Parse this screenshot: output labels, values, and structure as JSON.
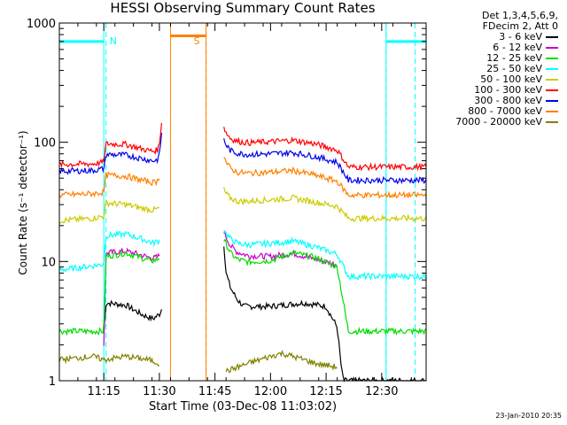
{
  "chart_data": {
    "type": "line",
    "title": "HESSI Observing Summary Count Rates",
    "xlabel": "Start Time (03-Dec-08 11:03:02)",
    "ylabel": "Count Rate (s⁻¹ detector⁻¹)",
    "y_scale": "log",
    "ylim": [
      1,
      1000
    ],
    "xlim": [
      11.05,
      12.7
    ],
    "x_tick_labels": [
      "11:15",
      "11:30",
      "11:45",
      "12:00",
      "12:15",
      "12:30"
    ],
    "x_tick_values": [
      11.25,
      11.5,
      11.75,
      12.0,
      12.25,
      12.5
    ],
    "y_tick_labels": [
      "1",
      "10",
      "100",
      "1000"
    ],
    "y_tick_values": [
      1,
      10,
      100,
      1000
    ],
    "data_gap": [
      11.55,
      11.79
    ],
    "series": [
      {
        "name": "3 - 6 keV",
        "color": "#000000",
        "segments": [
          {
            "x": [
              11.25,
              11.26,
              11.35,
              11.42,
              11.47,
              11.49,
              11.5,
              11.51
            ],
            "y": [
              2.5,
              4.5,
              4.3,
              3.6,
              3.3,
              3.5,
              3.6,
              4.0
            ]
          },
          {
            "x": [
              11.79,
              11.8,
              11.82,
              11.85,
              11.88,
              12.0,
              12.15,
              12.25,
              12.3,
              12.32,
              12.33,
              12.7
            ],
            "y": [
              14,
              8,
              6,
              4.8,
              4.2,
              4.2,
              4.5,
              4.2,
              2.8,
              1.2,
              1.0,
              1.0
            ]
          }
        ]
      },
      {
        "name": "6 - 12 keV",
        "color": "#cc00cc",
        "segments": [
          {
            "x": [
              11.25,
              11.26,
              11.35,
              11.42,
              11.47,
              11.49,
              11.5
            ],
            "y": [
              2.0,
              11.8,
              12.2,
              11.3,
              10.6,
              10.9,
              11.2
            ]
          },
          {
            "x": [
              11.79,
              11.8,
              11.82,
              11.85,
              11.9,
              12.0,
              12.1,
              12.2,
              12.3
            ],
            "y": [
              18,
              16,
              13.5,
              12.0,
              11.2,
              11.0,
              11.7,
              10.5,
              9.4
            ]
          }
        ]
      },
      {
        "name": "12 - 25 keV",
        "color": "#00dd00",
        "segments": [
          {
            "x": [
              11.05,
              11.2,
              11.25,
              11.26,
              11.35,
              11.42,
              11.47,
              11.49,
              11.5
            ],
            "y": [
              2.6,
              2.6,
              2.6,
              11.0,
              11.8,
              10.7,
              10.1,
              10.4,
              10.8
            ]
          },
          {
            "x": [
              11.79,
              11.8,
              11.82,
              11.85,
              11.9,
              12.0,
              12.1,
              12.2,
              12.3,
              12.35,
              12.7
            ],
            "y": [
              15,
              14,
              11.8,
              10.4,
              9.9,
              10.2,
              11.8,
              10.8,
              9.0,
              2.6,
              2.6
            ]
          }
        ]
      },
      {
        "name": "25 - 50 keV",
        "color": "#00ffff",
        "segments": [
          {
            "x": [
              11.05,
              11.1,
              11.2,
              11.25,
              11.26,
              11.35,
              11.42,
              11.47,
              11.49,
              11.5
            ],
            "y": [
              8.5,
              8.7,
              9.2,
              9.5,
              16.5,
              17.0,
              15.5,
              14.3,
              14.7,
              15.0
            ]
          },
          {
            "x": [
              11.79,
              11.8,
              11.82,
              11.85,
              11.9,
              12.0,
              12.1,
              12.2,
              12.3,
              12.35,
              12.7
            ],
            "y": [
              19,
              17,
              15.5,
              14.2,
              13.8,
              14.2,
              14.8,
              13.3,
              11.5,
              7.5,
              7.5
            ]
          }
        ]
      },
      {
        "name": "50 - 100 keV",
        "color": "#cccc00",
        "segments": [
          {
            "x": [
              11.05,
              11.2,
              11.25,
              11.26,
              11.35,
              11.42,
              11.47,
              11.49,
              11.5
            ],
            "y": [
              22,
              23,
              24,
              31,
              30,
              28,
              27,
              27.5,
              28
            ]
          },
          {
            "x": [
              11.79,
              11.8,
              11.82,
              11.85,
              11.9,
              12.0,
              12.1,
              12.2,
              12.3,
              12.35,
              12.7
            ],
            "y": [
              40,
              37,
              34,
              32,
              32,
              33,
              34,
              31.5,
              29,
              23,
              23
            ]
          }
        ]
      },
      {
        "name": "100 - 300 keV",
        "color": "#ff0000",
        "segments": [
          {
            "x": [
              11.05,
              11.2,
              11.25,
              11.26,
              11.35,
              11.42,
              11.47,
              11.49,
              11.5,
              11.51
            ],
            "y": [
              65,
              66,
              68,
              97,
              96,
              88,
              84,
              86,
              95,
              150
            ]
          },
          {
            "x": [
              11.79,
              11.8,
              11.82,
              11.85,
              11.9,
              12.0,
              12.1,
              12.2,
              12.3,
              12.35,
              12.7
            ],
            "y": [
              135,
              120,
              108,
              102,
              99,
              101,
              104,
              97,
              86,
              62,
              62
            ]
          }
        ]
      },
      {
        "name": "300 - 800 keV",
        "color": "#0000ee",
        "segments": [
          {
            "x": [
              11.05,
              11.2,
              11.25,
              11.26,
              11.35,
              11.42,
              11.47,
              11.49,
              11.5,
              11.51
            ],
            "y": [
              57,
              58,
              60,
              79,
              78,
              73,
              70,
              71,
              78,
              120
            ]
          },
          {
            "x": [
              11.79,
              11.8,
              11.82,
              11.85,
              11.9,
              12.0,
              12.1,
              12.2,
              12.3,
              12.35,
              12.7
            ],
            "y": [
              105,
              95,
              85,
              81,
              79,
              80,
              82,
              76,
              68,
              48,
              48
            ]
          }
        ]
      },
      {
        "name": "800 - 7000 keV",
        "color": "#ff8000",
        "segments": [
          {
            "x": [
              11.05,
              11.2,
              11.25,
              11.26,
              11.35,
              11.42,
              11.47,
              11.49,
              11.5
            ],
            "y": [
              36,
              37,
              38,
              53,
              52,
              48,
              46,
              47,
              52
            ]
          },
          {
            "x": [
              11.79,
              11.8,
              11.82,
              11.85,
              11.9,
              12.0,
              12.1,
              12.2,
              12.3,
              12.35,
              12.7
            ],
            "y": [
              78,
              68,
              60,
              56,
              55,
              56,
              58,
              53,
              47,
              36,
              36
            ]
          }
        ]
      },
      {
        "name": "7000 - 20000 keV",
        "color": "#808000",
        "segments": [
          {
            "x": [
              11.05,
              11.2,
              11.25,
              11.35,
              11.45,
              11.5
            ],
            "y": [
              1.5,
              1.6,
              1.5,
              1.6,
              1.5,
              1.4
            ]
          },
          {
            "x": [
              11.8,
              11.9,
              12.0,
              12.05,
              12.1,
              12.15,
              12.2,
              12.3
            ],
            "y": [
              1.2,
              1.4,
              1.6,
              1.7,
              1.6,
              1.5,
              1.4,
              1.3
            ]
          }
        ]
      }
    ],
    "flags": [
      {
        "label": "N",
        "color": "#00ffff",
        "level": 700,
        "solid_x": [
          11.05,
          11.25,
          12.52,
          12.7
        ],
        "dashed_x": [
          11.26,
          12.52,
          12.65
        ]
      },
      {
        "label": "S",
        "color": "#ff8000",
        "level": 780,
        "solid_x": [
          11.55,
          11.71
        ],
        "dashed_x": [
          11.71
        ]
      }
    ],
    "legend": {
      "position": "top-right",
      "header": [
        "Det 1,3,4,5,6,9,",
        "FDecim 2, Att 0"
      ]
    }
  },
  "timestamp": "23-Jan-2010 20:35"
}
